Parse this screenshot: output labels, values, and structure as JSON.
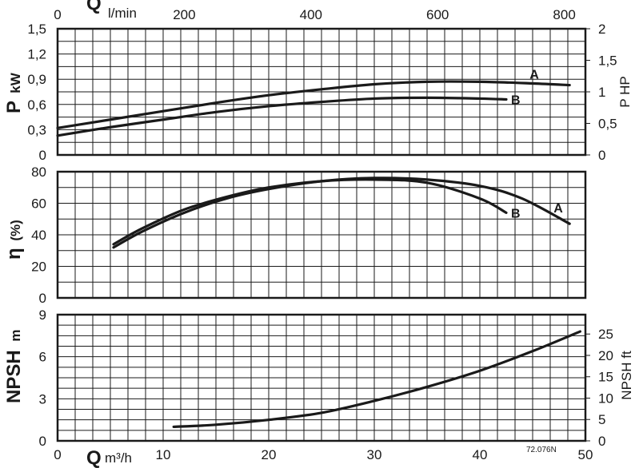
{
  "top_axis": {
    "label": "Q",
    "unit": "l/min",
    "ticks": [
      "0",
      "200",
      "400",
      "600",
      "800"
    ],
    "range": [
      0,
      833.33
    ]
  },
  "bottom_axis": {
    "label": "Q",
    "unit": "m³/h",
    "ticks": [
      "0",
      "10",
      "20",
      "30",
      "40",
      "50"
    ],
    "range": [
      0,
      50
    ]
  },
  "reference_code": "72.076N",
  "chart_data": [
    {
      "type": "line",
      "panel": "power",
      "ylabel": "P",
      "yunit": "kW",
      "ylabel_right": "P HP",
      "ylim": [
        0,
        1.5
      ],
      "yticks": [
        "0",
        "0,3",
        "0,6",
        "0,9",
        "1,2",
        "1,5"
      ],
      "ylim_right": [
        0,
        2
      ],
      "yticks_right": [
        "0",
        "0,5",
        "1",
        "1,5",
        "2"
      ],
      "grid": true,
      "series": [
        {
          "name": "A",
          "x": [
            0,
            5,
            10,
            15,
            20,
            25,
            30,
            35,
            40,
            45,
            48.5
          ],
          "y": [
            0.32,
            0.42,
            0.52,
            0.62,
            0.71,
            0.78,
            0.84,
            0.87,
            0.87,
            0.85,
            0.83
          ]
        },
        {
          "name": "B",
          "x": [
            0,
            5,
            10,
            15,
            20,
            25,
            30,
            35,
            40,
            42.5
          ],
          "y": [
            0.23,
            0.33,
            0.42,
            0.51,
            0.58,
            0.63,
            0.67,
            0.68,
            0.67,
            0.66
          ]
        }
      ]
    },
    {
      "type": "line",
      "panel": "efficiency",
      "ylabel": "η",
      "yunit": "(%)",
      "ylim": [
        0,
        80
      ],
      "yticks": [
        "0",
        "20",
        "40",
        "60",
        "80"
      ],
      "grid": true,
      "series": [
        {
          "name": "A",
          "x": [
            5.3,
            8,
            12,
            16,
            20,
            25,
            30,
            35,
            40,
            44,
            48.5
          ],
          "y": [
            32,
            42,
            54,
            63,
            69,
            74,
            76,
            75,
            71,
            63,
            47
          ]
        },
        {
          "name": "B",
          "x": [
            5.3,
            8,
            12,
            16,
            20,
            25,
            30,
            35,
            40,
            42.5
          ],
          "y": [
            34,
            44,
            56,
            64,
            70,
            74,
            75,
            73,
            63,
            54
          ]
        }
      ]
    },
    {
      "type": "line",
      "panel": "npsh",
      "ylabel": "NPSH",
      "yunit": "m",
      "ylabel_right": "NPSH ft",
      "ylim": [
        0,
        9
      ],
      "yticks": [
        "0",
        "3",
        "6",
        "9"
      ],
      "ylim_right": [
        0,
        29.53
      ],
      "yticks_right": [
        "0",
        "5",
        "10",
        "15",
        "20",
        "25"
      ],
      "grid": true,
      "series": [
        {
          "name": "",
          "x": [
            11,
            15,
            20,
            25,
            30,
            35,
            40,
            45,
            49.5
          ],
          "y": [
            1.0,
            1.15,
            1.5,
            2.0,
            2.85,
            3.85,
            5.0,
            6.4,
            7.8
          ]
        }
      ]
    }
  ]
}
